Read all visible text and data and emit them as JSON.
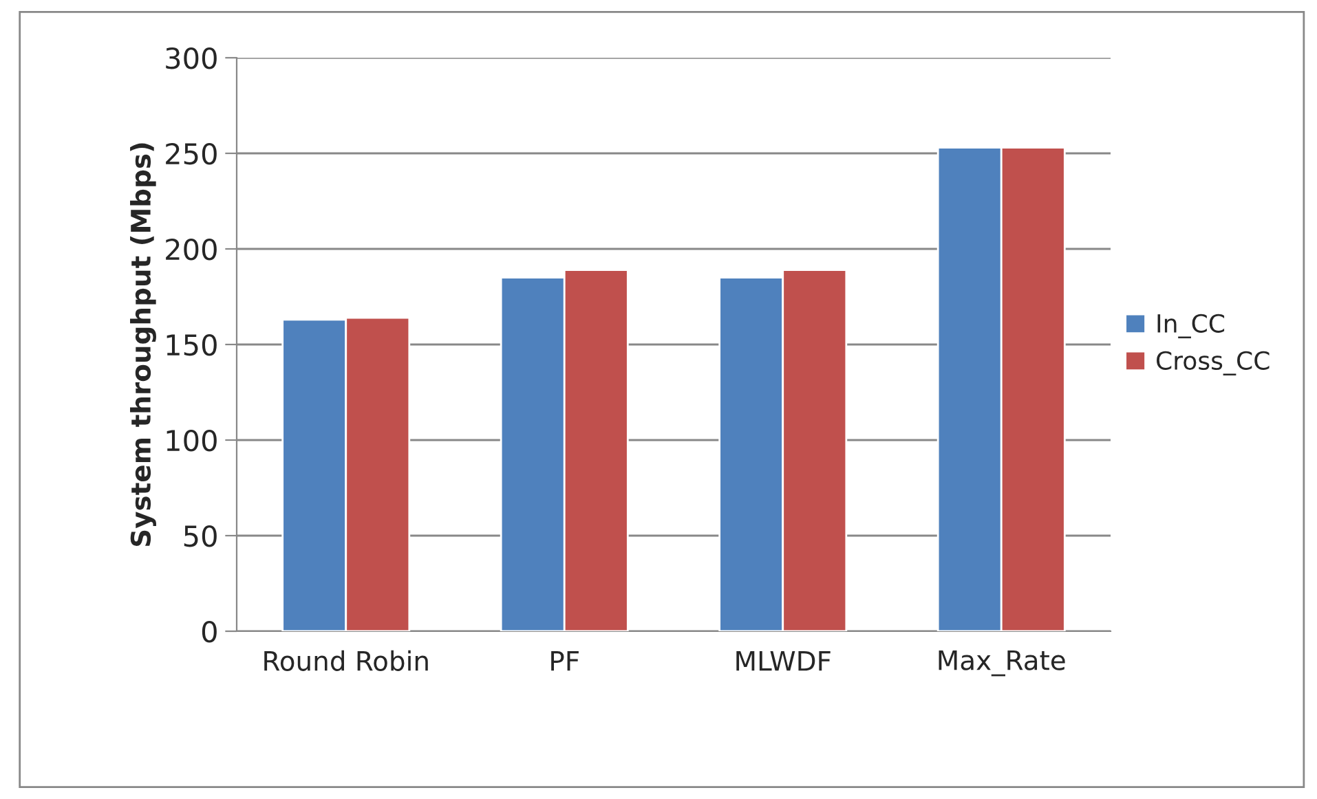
{
  "chart_data": {
    "type": "bar",
    "ylabel": "System throughput (Mbps)",
    "categories": [
      "Round Robin",
      "PF",
      "MLWDF",
      "Max_Rate"
    ],
    "series": [
      {
        "name": "In_CC",
        "color": "#4f81bd",
        "values": [
          163,
          185,
          185,
          253
        ]
      },
      {
        "name": "Cross_CC",
        "color": "#c0504d",
        "values": [
          164,
          189,
          189,
          253
        ]
      }
    ],
    "ylim": [
      0,
      300
    ],
    "yticks": [
      0,
      50,
      100,
      150,
      200,
      250,
      300
    ],
    "grid": "y",
    "legend": "right"
  }
}
